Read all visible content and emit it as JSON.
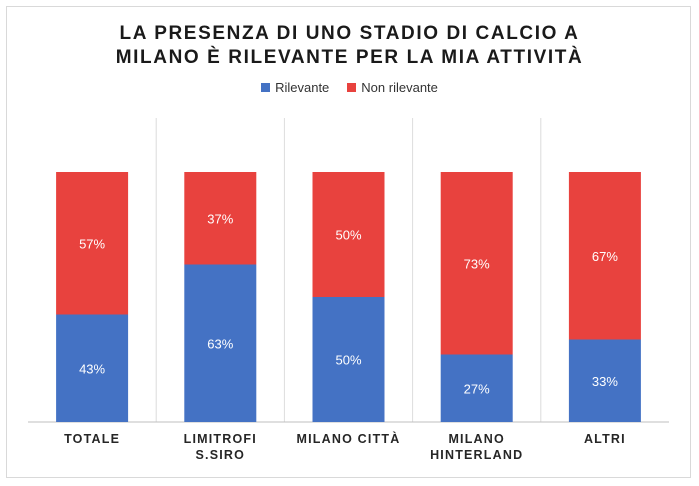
{
  "chart_data": {
    "type": "bar",
    "stacked": true,
    "title_lines": [
      "LA PRESENZA DI UNO STADIO DI CALCIO A",
      "MILANO È RILEVANTE PER LA MIA ATTIVITÀ"
    ],
    "categories": [
      [
        "TOTALE"
      ],
      [
        "LIMITROFI",
        "S.SIRO"
      ],
      [
        "MILANO CITTÀ"
      ],
      [
        "MILANO",
        "HINTERLAND"
      ],
      [
        "ALTRI"
      ]
    ],
    "series": [
      {
        "name": "Rilevante",
        "color": "#4472c4",
        "values": [
          43,
          63,
          50,
          27,
          33
        ],
        "labels": [
          "43%",
          "63%",
          "50%",
          "27%",
          "33%"
        ]
      },
      {
        "name": "Non rilevante",
        "color": "#e8423e",
        "values": [
          57,
          37,
          50,
          73,
          67
        ],
        "labels": [
          "57%",
          "37%",
          "50%",
          "73%",
          "67%"
        ]
      }
    ],
    "ylim": [
      0,
      100
    ],
    "legend_position": "top-center",
    "grid": false
  }
}
